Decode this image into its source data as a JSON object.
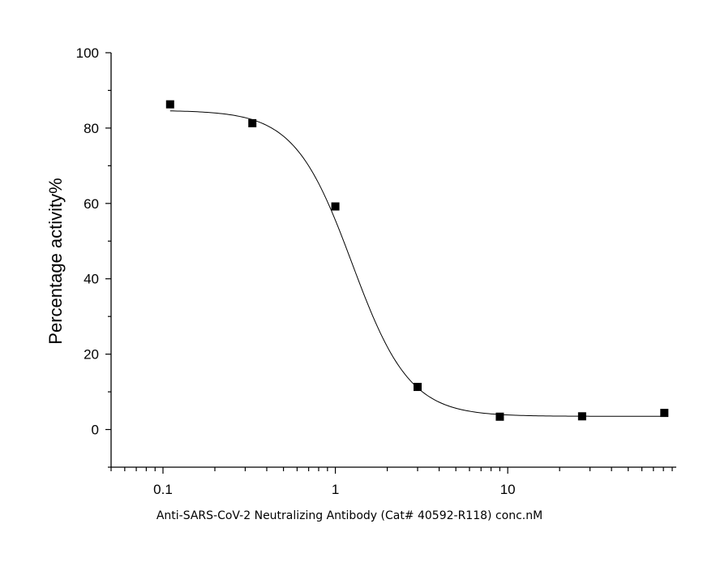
{
  "chart_data": {
    "type": "scatter",
    "title": "",
    "xlabel": "Anti-SARS-CoV-2 Neutralizing Antibody (Cat# 40592-R118) conc.nM",
    "ylabel": "Percentage activity%",
    "x_scale": "log",
    "xlim": [
      0.05,
      95
    ],
    "ylim": [
      -10,
      100
    ],
    "x_ticks": [
      {
        "value": 0.1,
        "label": "0.1"
      },
      {
        "value": 1,
        "label": "1"
      },
      {
        "value": 10,
        "label": "10"
      }
    ],
    "y_ticks": [
      {
        "value": 0,
        "label": "0"
      },
      {
        "value": 20,
        "label": "20"
      },
      {
        "value": 40,
        "label": "40"
      },
      {
        "value": 60,
        "label": "60"
      },
      {
        "value": 80,
        "label": "80"
      },
      {
        "value": 100,
        "label": "100"
      }
    ],
    "grid": false,
    "legend": "none",
    "series": [
      {
        "marker": "square",
        "color": "#000000",
        "x": [
          0.11,
          0.33,
          1.0,
          3.0,
          9.0,
          27.0,
          81.0
        ],
        "y": [
          86.3,
          81.3,
          59.2,
          11.3,
          3.4,
          3.5,
          4.4
        ]
      }
    ],
    "fit_curve": {
      "model": "4PL",
      "color": "#000000",
      "top": 84.7,
      "bottom": 3.5,
      "ec50": 1.25,
      "hill": 2.6
    }
  }
}
